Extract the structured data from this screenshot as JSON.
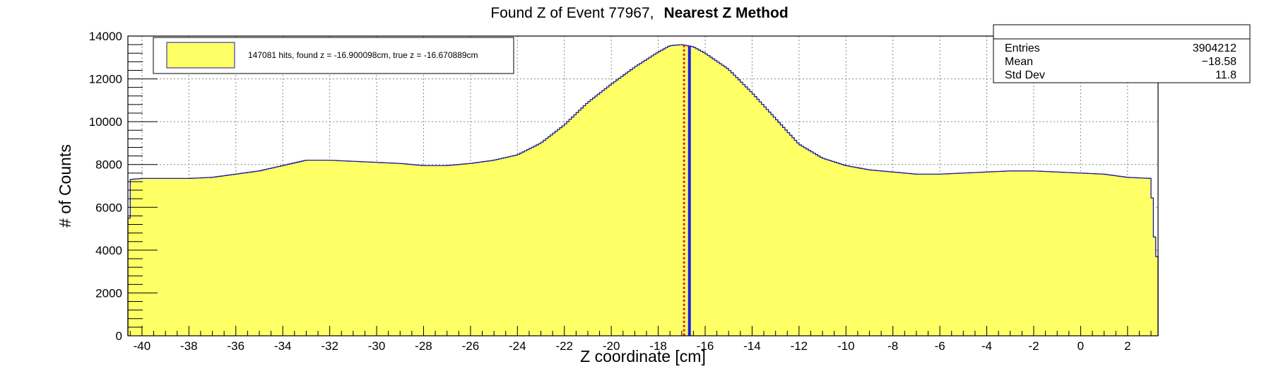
{
  "chart_data": {
    "type": "histogram",
    "title_main": "Found Z of Event 77967,",
    "title_method": "Nearest Z Method",
    "xlabel": "Z coordinate [cm]",
    "ylabel": "# of Counts",
    "xlim": [
      -40.6,
      3.3
    ],
    "ylim": [
      0,
      14000
    ],
    "x_ticks": [
      "-40",
      "-38",
      "-36",
      "-34",
      "-32",
      "-30",
      "-28",
      "-26",
      "-24",
      "-22",
      "-20",
      "-18",
      "-16",
      "-14",
      "-12",
      "-10",
      "-8",
      "-6",
      "-4",
      "-2",
      "0",
      "2"
    ],
    "x_tick_values": [
      -40,
      -38,
      -36,
      -34,
      -32,
      -30,
      -28,
      -26,
      -24,
      -22,
      -20,
      -18,
      -16,
      -14,
      -12,
      -10,
      -8,
      -6,
      -4,
      -2,
      0,
      2
    ],
    "y_ticks": [
      "0",
      "2000",
      "4000",
      "6000",
      "8000",
      "10000",
      "12000",
      "14000"
    ],
    "y_tick_values": [
      0,
      2000,
      4000,
      6000,
      8000,
      10000,
      12000,
      14000
    ],
    "grid": true,
    "fill_color": "#ffff66",
    "line_color": "#1a1a99",
    "profile": [
      [
        -40.6,
        3700
      ],
      [
        -40.5,
        7300
      ],
      [
        -40.0,
        7350
      ],
      [
        -39.0,
        7350
      ],
      [
        -38.0,
        7350
      ],
      [
        -37.0,
        7400
      ],
      [
        -36.0,
        7550
      ],
      [
        -35.0,
        7700
      ],
      [
        -34.0,
        7950
      ],
      [
        -33.0,
        8200
      ],
      [
        -32.0,
        8200
      ],
      [
        -31.0,
        8150
      ],
      [
        -30.0,
        8100
      ],
      [
        -29.0,
        8050
      ],
      [
        -28.0,
        7950
      ],
      [
        -27.0,
        7950
      ],
      [
        -26.0,
        8050
      ],
      [
        -25.0,
        8200
      ],
      [
        -24.0,
        8450
      ],
      [
        -23.0,
        9000
      ],
      [
        -22.0,
        9850
      ],
      [
        -21.0,
        10900
      ],
      [
        -20.0,
        11750
      ],
      [
        -19.0,
        12550
      ],
      [
        -18.0,
        13250
      ],
      [
        -17.5,
        13550
      ],
      [
        -17.0,
        13600
      ],
      [
        -16.5,
        13500
      ],
      [
        -16.0,
        13200
      ],
      [
        -15.0,
        12450
      ],
      [
        -14.0,
        11350
      ],
      [
        -13.0,
        10150
      ],
      [
        -12.0,
        8950
      ],
      [
        -11.0,
        8300
      ],
      [
        -10.0,
        7950
      ],
      [
        -9.0,
        7750
      ],
      [
        -8.0,
        7650
      ],
      [
        -7.0,
        7550
      ],
      [
        -6.0,
        7550
      ],
      [
        -5.0,
        7600
      ],
      [
        -4.0,
        7650
      ],
      [
        -3.0,
        7700
      ],
      [
        -2.0,
        7700
      ],
      [
        -1.0,
        7650
      ],
      [
        0.0,
        7600
      ],
      [
        1.0,
        7550
      ],
      [
        2.0,
        7400
      ],
      [
        3.0,
        7350
      ],
      [
        3.2,
        3700
      ]
    ],
    "lines": [
      {
        "name": "found z",
        "x": -16.900098,
        "color": "#e02020",
        "style": "dotted"
      },
      {
        "name": "true z",
        "x": -16.670889,
        "color": "#1f1fe0",
        "style": "solid"
      }
    ],
    "legend": {
      "entry": "147081 hits, found z = -16.900098cm, true z = -16.670889cm",
      "placement": "top-left"
    },
    "stats": {
      "placement": "top-right",
      "rows": [
        {
          "label": "Entries",
          "value": "3904212"
        },
        {
          "label": "Mean",
          "value": "−18.58"
        },
        {
          "label": "Std Dev",
          "value": "11.8"
        }
      ]
    }
  }
}
